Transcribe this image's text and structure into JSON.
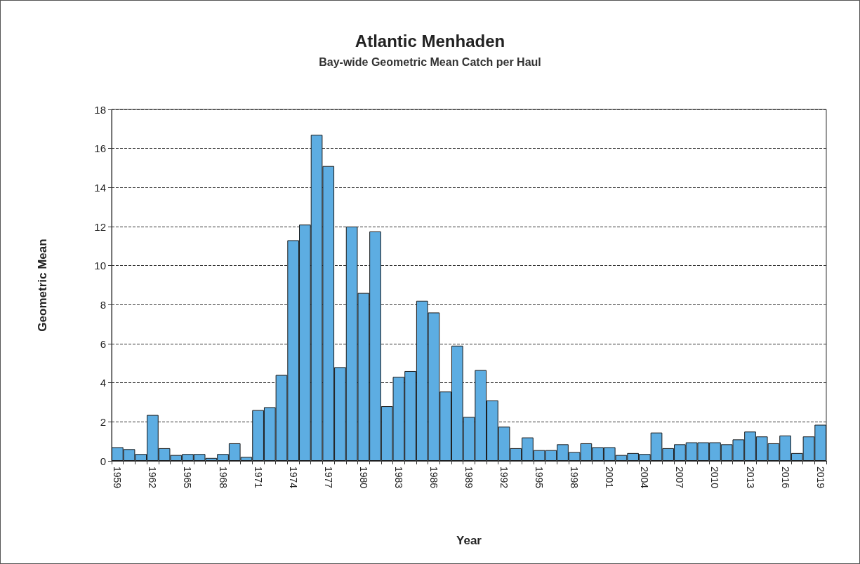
{
  "chart_data": {
    "type": "bar",
    "title": "Atlantic Menhaden",
    "subtitle": "Bay-wide Geometric Mean Catch per Haul",
    "xlabel": "Year",
    "ylabel": "Geometric Mean",
    "categories": [
      "1959",
      null,
      null,
      "1962",
      null,
      null,
      "1965",
      null,
      null,
      "1968",
      null,
      null,
      "1971",
      null,
      null,
      "1974",
      null,
      null,
      "1977",
      null,
      null,
      "1980",
      null,
      null,
      "1983",
      null,
      null,
      "1986",
      null,
      null,
      "1989",
      null,
      null,
      "1992",
      null,
      null,
      "1995",
      null,
      null,
      "1998",
      null,
      null,
      "2001",
      null,
      null,
      "2004",
      null,
      null,
      "2007",
      null,
      null,
      "2010",
      null,
      null,
      "2013",
      null,
      null,
      "2016",
      null,
      null,
      "2019"
    ],
    "values": [
      0.7,
      0.6,
      0.35,
      2.35,
      0.65,
      0.3,
      0.35,
      0.35,
      0.15,
      0.35,
      0.9,
      0.2,
      2.6,
      2.75,
      4.4,
      11.3,
      12.1,
      16.7,
      15.1,
      4.8,
      12.0,
      8.6,
      11.75,
      2.8,
      4.3,
      4.6,
      8.2,
      7.6,
      3.55,
      5.9,
      2.25,
      4.65,
      3.1,
      1.75,
      0.65,
      1.2,
      0.55,
      0.55,
      0.85,
      0.45,
      0.9,
      0.7,
      0.7,
      0.3,
      0.4,
      0.35,
      1.45,
      0.65,
      0.85,
      0.95,
      0.95,
      0.95,
      0.85,
      1.1,
      1.5,
      1.25,
      0.9,
      1.3,
      0.4,
      1.25,
      1.85
    ],
    "color": "#5dade2",
    "ylim": [
      0,
      18
    ],
    "yticks": [
      0,
      2,
      4,
      6,
      8,
      10,
      12,
      14,
      16,
      18
    ],
    "grid": "y"
  }
}
